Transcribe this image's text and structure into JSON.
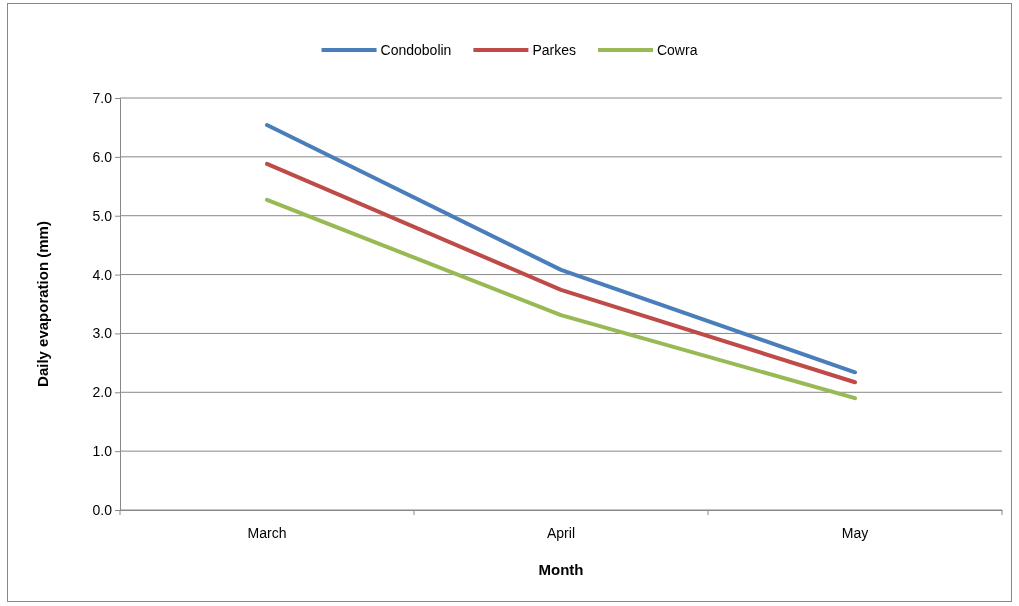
{
  "chart_data": {
    "type": "line",
    "xlabel": "Month",
    "ylabel": "Daily evaporation (mm)",
    "categories": [
      "March",
      "April",
      "May"
    ],
    "series": [
      {
        "name": "Condobolin",
        "color": "#4a7ebb",
        "values": [
          6.54,
          4.08,
          2.34
        ]
      },
      {
        "name": "Parkes",
        "color": "#be4b48",
        "values": [
          5.88,
          3.74,
          2.17
        ]
      },
      {
        "name": "Cowra",
        "color": "#98b954",
        "values": [
          5.27,
          3.31,
          1.9
        ]
      }
    ],
    "ylim": [
      0,
      7
    ],
    "yticks": [
      {
        "value": 0,
        "label": "0.0"
      },
      {
        "value": 1,
        "label": "1.0"
      },
      {
        "value": 2,
        "label": "2.0"
      },
      {
        "value": 3,
        "label": "3.0"
      },
      {
        "value": 4,
        "label": "4.0"
      },
      {
        "value": 5,
        "label": "5.0"
      },
      {
        "value": 6,
        "label": "6.0"
      },
      {
        "value": 7,
        "label": "7.0"
      }
    ],
    "grid": "y",
    "legend": "top",
    "marker": "none",
    "line_style": "solid"
  }
}
